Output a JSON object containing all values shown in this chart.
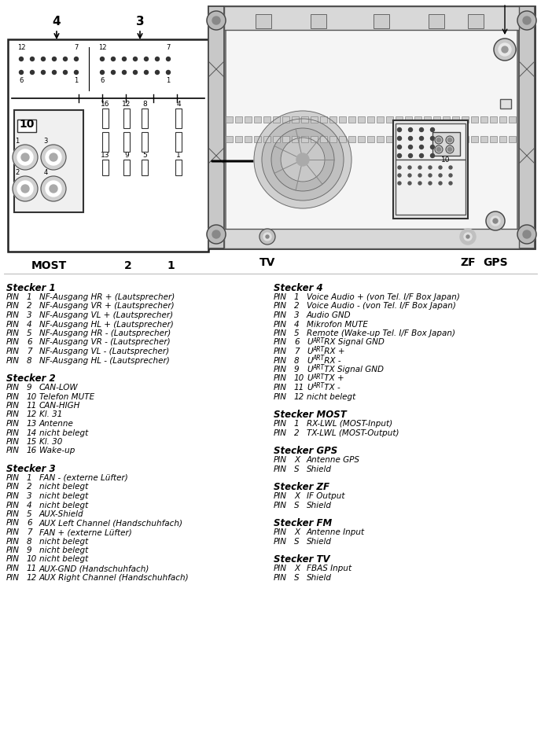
{
  "stecker1_header": "Stecker 1",
  "stecker1_pins": [
    [
      "PIN",
      "1",
      "NF-Ausgang HR + (Lautsprecher)"
    ],
    [
      "PIN",
      "2",
      "NF-Ausgang VR + (Lautsprecher)"
    ],
    [
      "PIN",
      "3",
      "NF-Ausgang VL + (Lautsprecher)"
    ],
    [
      "PIN",
      "4",
      "NF-Ausgang HL + (Lautsprecher)"
    ],
    [
      "PIN",
      "5",
      "NF-Ausgang HR - (Lautsprecher)"
    ],
    [
      "PIN",
      "6",
      "NF-Ausgang VR - (Lautsprecher)"
    ],
    [
      "PIN",
      "7",
      "NF-Ausgang VL - (Lautsprecher)"
    ],
    [
      "PIN",
      "8",
      "NF-Ausgang HL - (Lautsprecher)"
    ]
  ],
  "stecker2_header": "Stecker 2",
  "stecker2_pins": [
    [
      "PIN",
      "9",
      "CAN-LOW"
    ],
    [
      "PIN",
      "10",
      "Telefon MUTE"
    ],
    [
      "PIN",
      "11",
      "CAN-HIGH"
    ],
    [
      "PIN",
      "12",
      "Kl. 31"
    ],
    [
      "PIN",
      "13",
      "Antenne"
    ],
    [
      "PIN",
      "14",
      "nicht belegt"
    ],
    [
      "PIN",
      "15",
      "Kl. 30"
    ],
    [
      "PIN",
      "16",
      "Wake-up"
    ]
  ],
  "stecker3_header": "Stecker 3",
  "stecker3_pins": [
    [
      "PIN",
      "1",
      "FAN - (externe Lüfter)"
    ],
    [
      "PIN",
      "2",
      "nicht belegt"
    ],
    [
      "PIN",
      "3",
      "nicht belegt"
    ],
    [
      "PIN",
      "4",
      "nicht belegt"
    ],
    [
      "PIN",
      "5",
      "AUX-Shield"
    ],
    [
      "PIN",
      "6",
      "AUX Left Channel (Handschuhfach)"
    ],
    [
      "PIN",
      "7",
      "FAN + (externe Lüfter)"
    ],
    [
      "PIN",
      "8",
      "nicht belegt"
    ],
    [
      "PIN",
      "9",
      "nicht belegt"
    ],
    [
      "PIN",
      "10",
      "nicht belegt"
    ],
    [
      "PIN",
      "11",
      "AUX-GND (Handschuhfach)"
    ],
    [
      "PIN",
      "12",
      "AUX Right Channel (Handschuhfach)"
    ]
  ],
  "stecker4_header": "Stecker 4",
  "stecker4_pins_pre": [
    [
      "PIN",
      "1",
      "Voice Audio + (von Tel. I/F Box Japan)"
    ],
    [
      "PIN",
      "2",
      "Voice Audio - (von Tel. I/F Box Japan)"
    ],
    [
      "PIN",
      "3",
      "Audio GND"
    ],
    [
      "PIN",
      "4",
      "Mikrofon MUTE"
    ],
    [
      "PIN",
      "5",
      "Remote (Wake-up Tel. I/F Box Japan)"
    ]
  ],
  "stecker4_pins_uart": [
    [
      "PIN",
      "6",
      "RX Signal GND"
    ],
    [
      "PIN",
      "7",
      "RX +"
    ],
    [
      "PIN",
      "8",
      "RX -"
    ],
    [
      "PIN",
      "9",
      "TX Signal GND"
    ],
    [
      "PIN",
      "10",
      "TX +"
    ],
    [
      "PIN",
      "11",
      "TX -"
    ]
  ],
  "stecker4_pins_post": [
    [
      "PIN",
      "12",
      "nicht belegt"
    ]
  ],
  "stecker_most_header": "Stecker MOST",
  "stecker_most_pins": [
    [
      "PIN",
      "1",
      "RX-LWL (MOST-Input)"
    ],
    [
      "PIN",
      "2",
      "TX-LWL (MOST-Output)"
    ]
  ],
  "stecker_gps_header": "Stecker GPS",
  "stecker_gps_pins": [
    [
      "PIN",
      "X",
      "Antenne GPS"
    ],
    [
      "PIN",
      "S",
      "Shield"
    ]
  ],
  "stecker_zf_header": "Stecker ZF",
  "stecker_zf_pins": [
    [
      "PIN",
      "X",
      "IF Output"
    ],
    [
      "PIN",
      "S",
      "Shield"
    ]
  ],
  "stecker_fm_header": "Stecker FM",
  "stecker_fm_pins": [
    [
      "PIN",
      "X",
      "Antenne Input"
    ],
    [
      "PIN",
      "S",
      "Shield"
    ]
  ],
  "stecker_tv_header": "Stecker TV",
  "stecker_tv_pins": [
    [
      "PIN",
      "X",
      "FBAS Input"
    ],
    [
      "PIN",
      "S",
      "Shield"
    ]
  ],
  "bg_color": "#ffffff",
  "text_color": "#000000",
  "line_color": "#000000"
}
